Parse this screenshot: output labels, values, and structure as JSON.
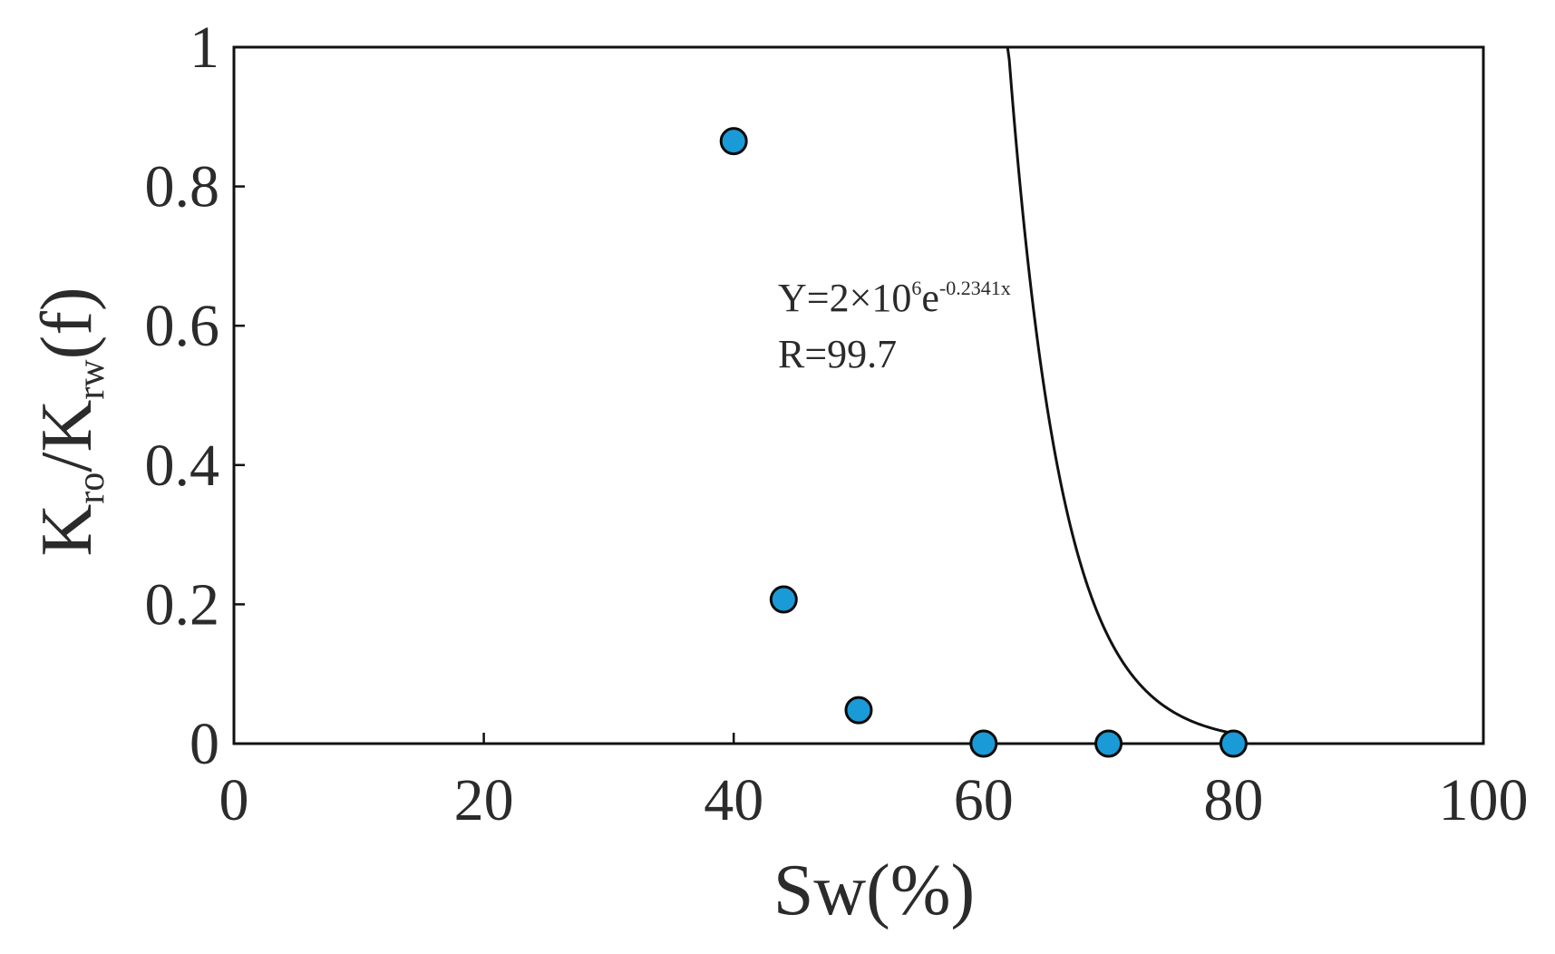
{
  "chart_data": {
    "type": "scatter",
    "title": "",
    "xlabel": "Sw(%)",
    "ylabel": {
      "base1": "K",
      "sub1": "ro",
      "mid": "/K",
      "sub2": "rw",
      "tail": "(f)"
    },
    "xlim": [
      0,
      100
    ],
    "ylim": [
      0,
      1
    ],
    "xticks": [
      0,
      20,
      40,
      60,
      80,
      100
    ],
    "yticks": [
      0,
      0.2,
      0.4,
      0.6,
      0.8,
      1
    ],
    "xtick_labels": [
      "0",
      "20",
      "40",
      "60",
      "80",
      "100"
    ],
    "ytick_labels": [
      "0",
      "0.2",
      "0.4",
      "0.6",
      "0.8",
      "1"
    ],
    "grid": false,
    "series": [
      {
        "points": [
          {
            "x": 40,
            "y": 0.865
          },
          {
            "x": 44,
            "y": 0.207
          },
          {
            "x": 50,
            "y": 0.048
          },
          {
            "x": 60,
            "y": 0.0
          },
          {
            "x": 70,
            "y": 0.0
          },
          {
            "x": 80,
            "y": 0.0
          }
        ],
        "color": "#1a9ad6"
      }
    ],
    "fit": {
      "type": "exponential",
      "a": 2000000,
      "b": -0.2341,
      "x_range": [
        38.9,
        80
      ],
      "color": "#111111"
    },
    "annotations": {
      "equation": {
        "main": "Y=2×10",
        "sup1": "6",
        "mid": "e",
        "sup2": "-0.2341x"
      },
      "r": "R=99.7"
    }
  }
}
